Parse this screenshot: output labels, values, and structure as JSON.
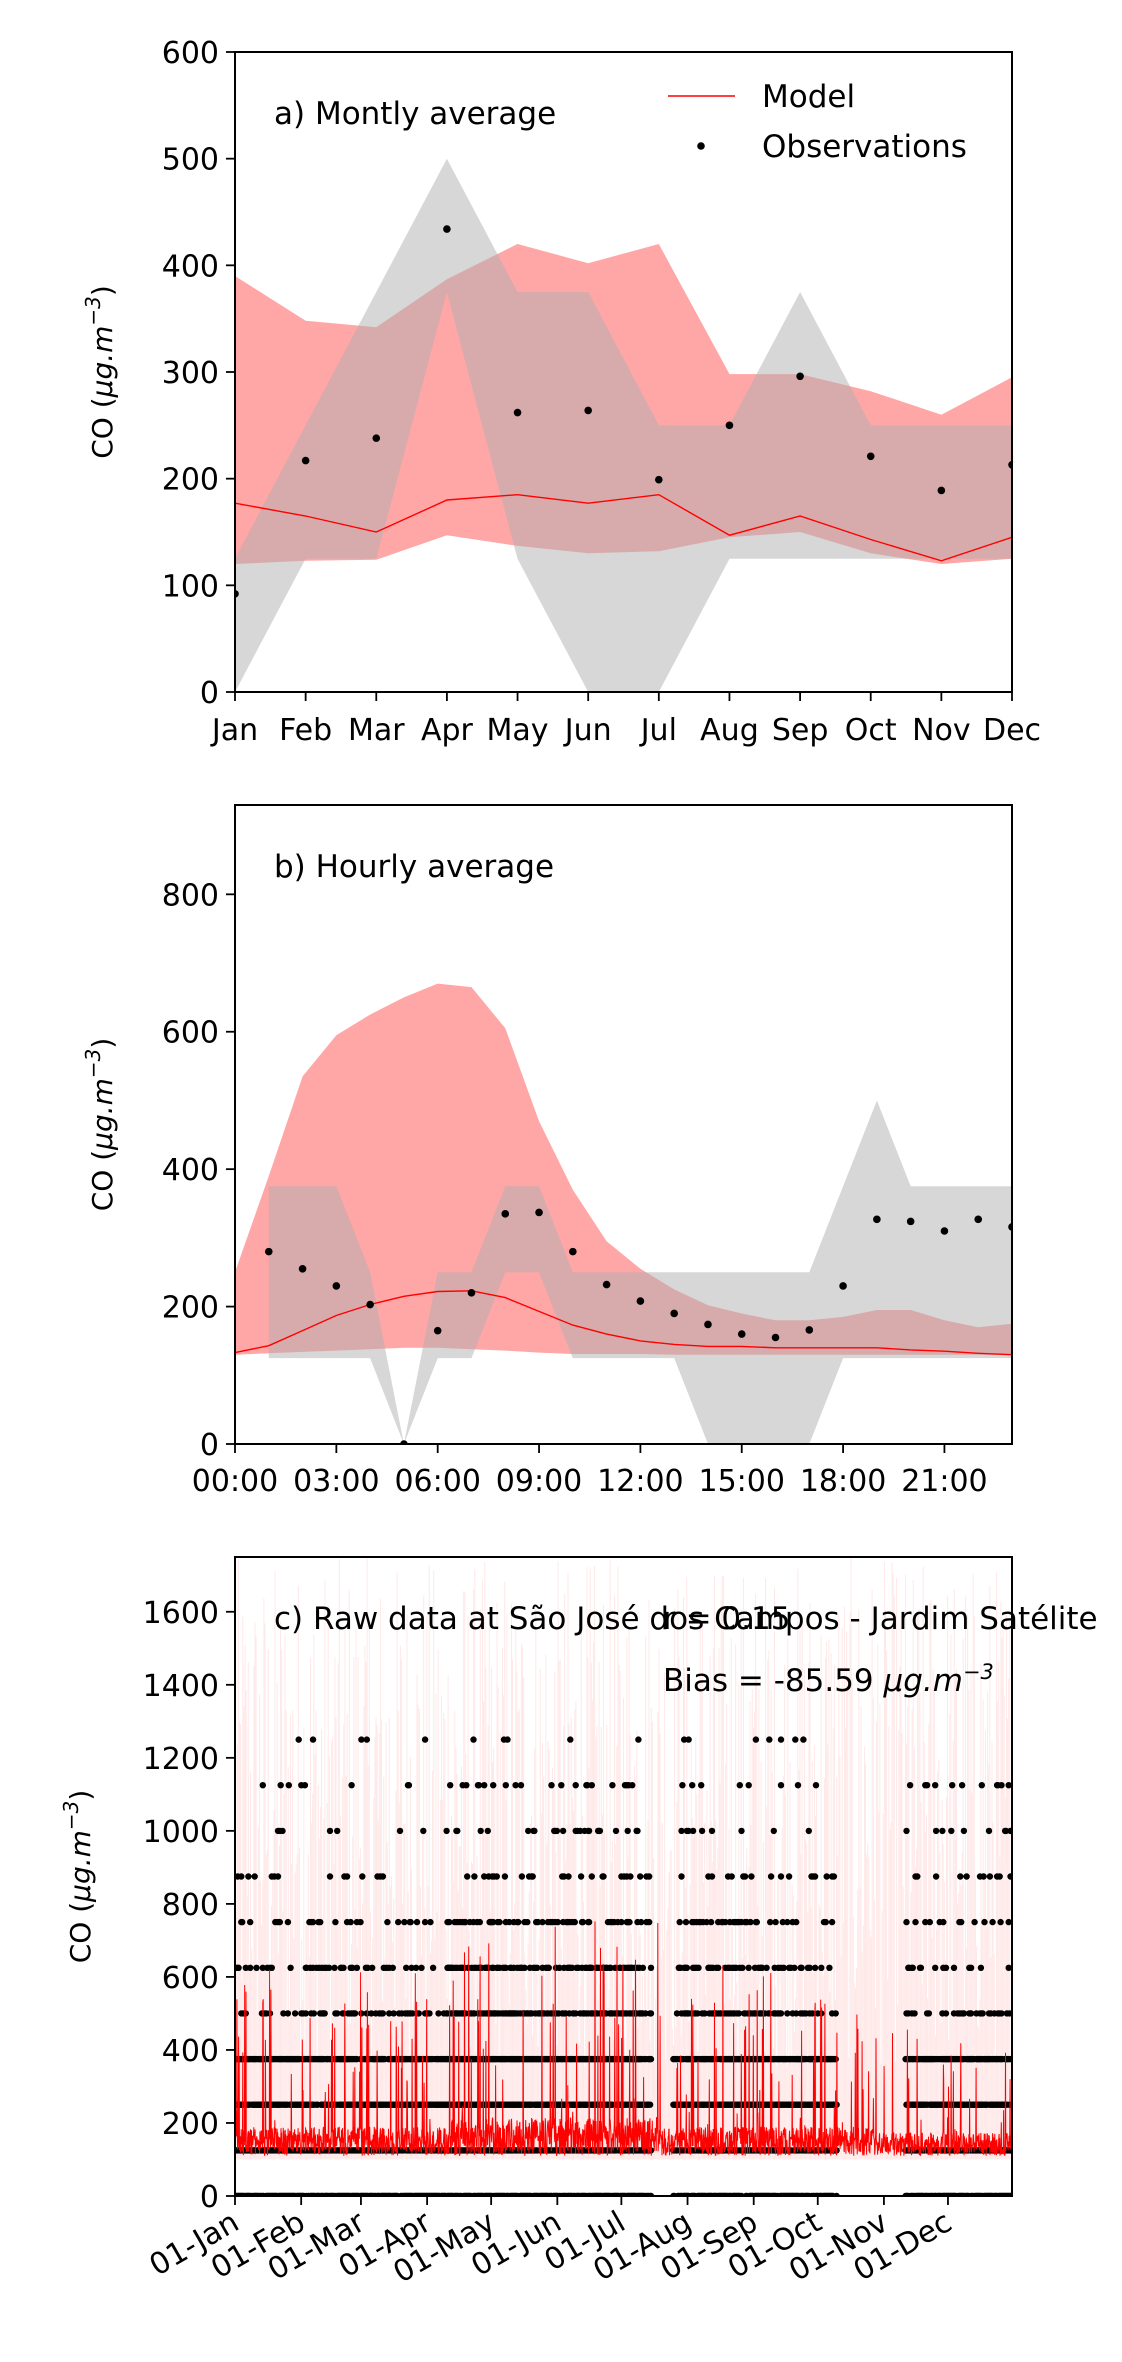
{
  "chart_data": [
    {
      "type": "line",
      "panel_label": "a) Montly average",
      "ylabel": "CO ($\\mu g.m^{-3}$)",
      "ylim": [
        0,
        600
      ],
      "yticks": [
        "0",
        "100",
        "200",
        "300",
        "400",
        "500",
        "600"
      ],
      "categories": [
        "Jan",
        "Feb",
        "Mar",
        "Apr",
        "May",
        "Jun",
        "Jul",
        "Aug",
        "Sep",
        "Oct",
        "Nov",
        "Dec"
      ],
      "legend": {
        "placement": "top-right",
        "model_label": "Model",
        "obs_label": "Observations"
      },
      "model": {
        "mean": [
          177,
          165,
          150,
          180,
          185,
          177,
          185,
          147,
          165,
          143,
          123,
          145
        ],
        "lower": [
          120,
          123,
          124,
          147,
          137,
          130,
          132,
          145,
          150,
          130,
          120,
          125
        ],
        "upper": [
          390,
          348,
          342,
          387,
          420,
          402,
          420,
          298,
          298,
          282,
          260,
          295
        ]
      },
      "observations": {
        "mean": [
          92,
          217,
          238,
          434,
          262,
          264,
          199,
          250,
          296,
          221,
          189,
          213
        ],
        "lower": [
          0,
          125,
          125,
          375,
          125,
          0,
          0,
          125,
          125,
          125,
          125,
          125
        ],
        "upper": [
          125,
          250,
          375,
          500,
          375,
          375,
          250,
          250,
          375,
          250,
          250,
          250
        ]
      },
      "colors": {
        "model": "#ff0000",
        "model_band": "#ffa6a6",
        "obs_band": "#b0b0b0",
        "obs": "#000000"
      }
    },
    {
      "type": "line",
      "panel_label": "b) Hourly average",
      "ylabel": "CO ($\\mu g.m^{-3}$)",
      "ylim": [
        0,
        930
      ],
      "yticks": [
        "0",
        "200",
        "400",
        "600",
        "800"
      ],
      "x": [
        0,
        1,
        2,
        3,
        4,
        5,
        6,
        7,
        8,
        9,
        10,
        11,
        12,
        13,
        14,
        15,
        16,
        17,
        18,
        19,
        20,
        21,
        22,
        23
      ],
      "xticks": [
        "00:00",
        "03:00",
        "06:00",
        "09:00",
        "12:00",
        "15:00",
        "18:00",
        "21:00"
      ],
      "model": {
        "mean": [
          133,
          143,
          165,
          187,
          203,
          215,
          222,
          223,
          213,
          193,
          173,
          160,
          150,
          145,
          142,
          142,
          140,
          140,
          140,
          140,
          137,
          135,
          132,
          130
        ],
        "lower": [
          130,
          132,
          134,
          136,
          138,
          140,
          140,
          138,
          136,
          133,
          131,
          131,
          131,
          130,
          130,
          130,
          130,
          130,
          130,
          130,
          130,
          130,
          130,
          130
        ],
        "upper": [
          250,
          390,
          535,
          595,
          625,
          650,
          670,
          665,
          605,
          470,
          370,
          295,
          255,
          225,
          202,
          190,
          180,
          180,
          185,
          195,
          195,
          180,
          170,
          175
        ]
      },
      "observations": {
        "mean": [
          null,
          280,
          255,
          230,
          203,
          0,
          165,
          220,
          335,
          337,
          280,
          232,
          208,
          190,
          174,
          160,
          155,
          166,
          230,
          327,
          324,
          310,
          327,
          316
        ],
        "lower": [
          null,
          125,
          125,
          125,
          125,
          0,
          125,
          125,
          250,
          250,
          125,
          125,
          125,
          125,
          0,
          0,
          0,
          0,
          125,
          125,
          125,
          125,
          125,
          125
        ],
        "upper": [
          null,
          375,
          375,
          375,
          250,
          0,
          250,
          250,
          375,
          375,
          250,
          250,
          250,
          250,
          250,
          250,
          250,
          250,
          375,
          500,
          375,
          375,
          375,
          375
        ]
      },
      "colors": {
        "model": "#ff0000",
        "model_band": "#ffa6a6",
        "obs_band": "#b0b0b0",
        "obs": "#000000"
      }
    },
    {
      "type": "line",
      "panel_label": "c) Raw data at São José dos Campos - Jardim Satélite",
      "ylabel": "CO ($\\mu g.m^{-3}$)",
      "ylim": [
        0,
        1750
      ],
      "yticks": [
        "0",
        "200",
        "400",
        "600",
        "800",
        "1000",
        "1200",
        "1400",
        "1600"
      ],
      "xlim": [
        1,
        365
      ],
      "xticks": [
        {
          "label": "01-Jan",
          "day": 1
        },
        {
          "label": "01-Feb",
          "day": 32
        },
        {
          "label": "01-Mar",
          "day": 60
        },
        {
          "label": "01-Apr",
          "day": 91
        },
        {
          "label": "01-May",
          "day": 121
        },
        {
          "label": "01-Jun",
          "day": 152
        },
        {
          "label": "01-Jul",
          "day": 182
        },
        {
          "label": "01-Aug",
          "day": 213
        },
        {
          "label": "01-Sep",
          "day": 244
        },
        {
          "label": "01-Oct",
          "day": 274
        },
        {
          "label": "01-Nov",
          "day": 305
        },
        {
          "label": "01-Dec",
          "day": 335
        }
      ],
      "stats": {
        "r_text": "r = 0.15",
        "bias_prefix": "Bias = -85.59 ",
        "bias_unit": "$\\mu g.m^{-3}$"
      },
      "obs_levels": [
        0,
        125,
        250,
        375,
        500,
        625,
        750,
        875,
        1000,
        1125,
        1250
      ],
      "obs_gaps": [
        [
          196,
          206
        ],
        [
          283,
          315
        ]
      ],
      "model_range": [
        70,
        880
      ],
      "colors": {
        "model": "#ff0000",
        "model_band": "#ffd6d6",
        "obs": "#000000"
      }
    }
  ]
}
